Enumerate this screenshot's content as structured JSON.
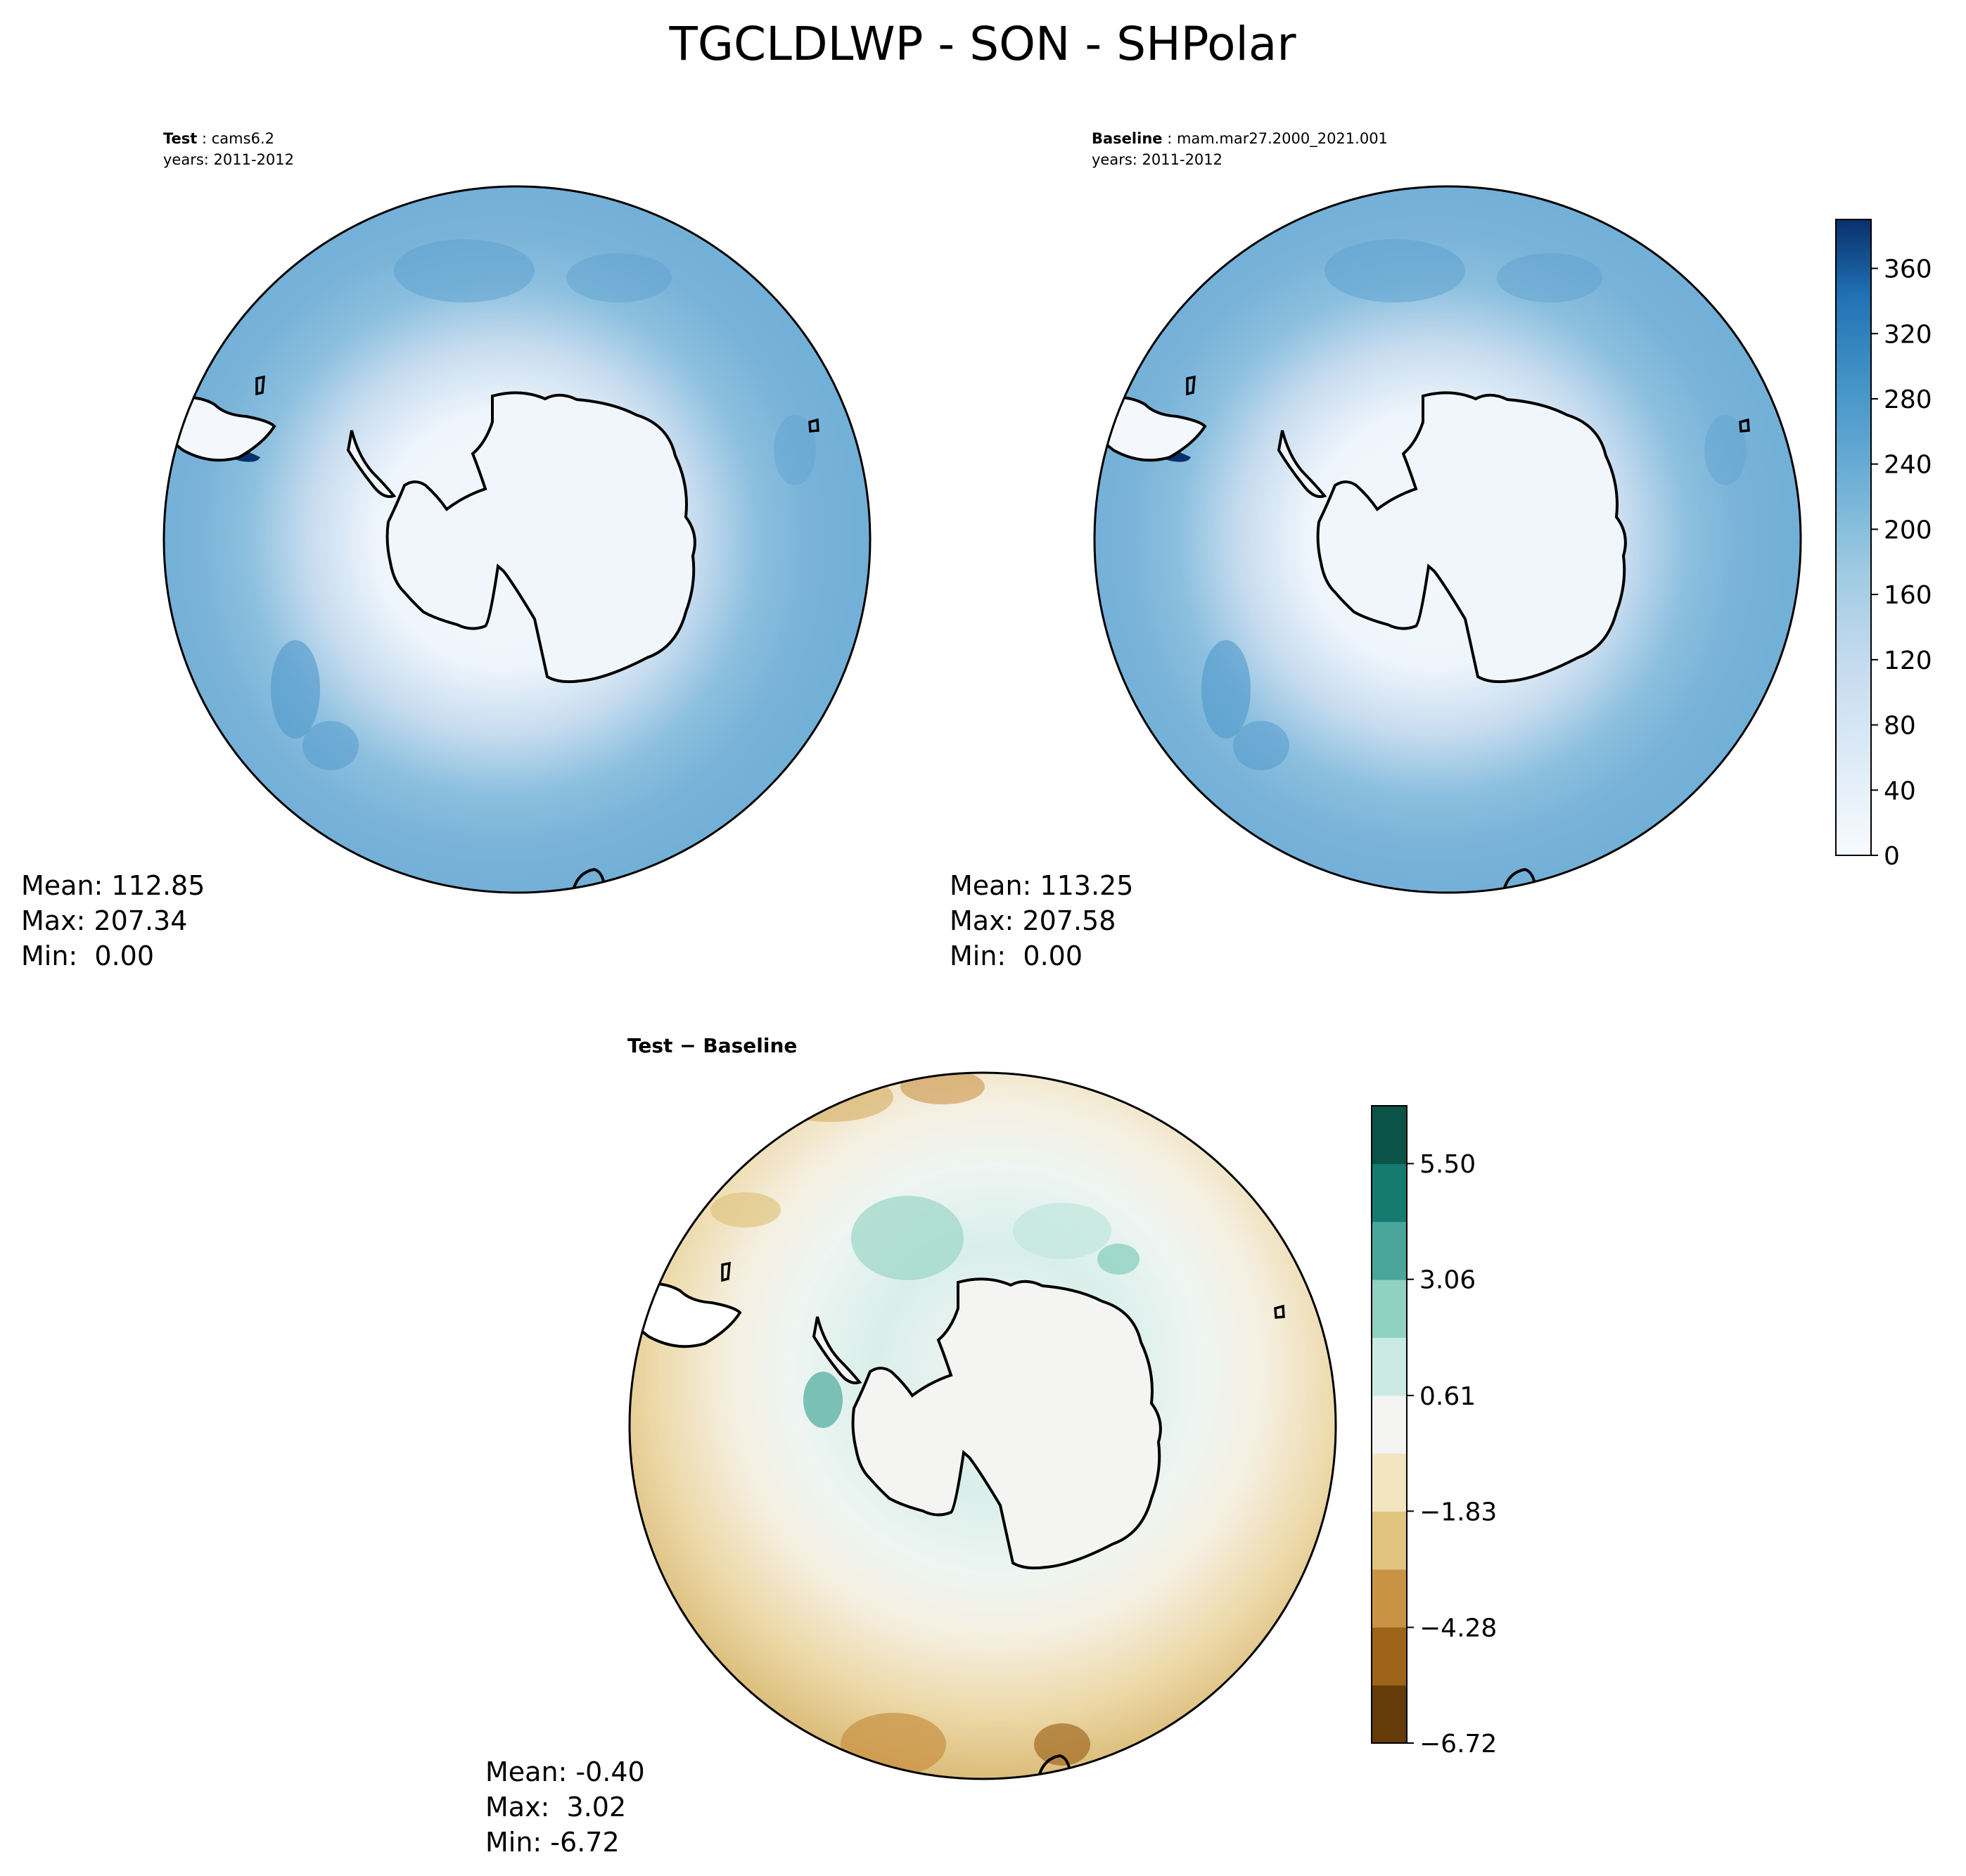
{
  "figure": {
    "title": "TGCLDLWP - SON - SHPolar"
  },
  "panels": {
    "test": {
      "label_bold": "Test",
      "label_sep": " : ",
      "label_rest": "cams6.2",
      "years": "years: 2011-2012",
      "stats": {
        "mean": "Mean: 112.85",
        "max": "Max: 207.34",
        "min": "Min:  0.00"
      }
    },
    "baseline": {
      "label_bold": "Baseline",
      "label_sep": " : ",
      "label_rest": "mam.mar27.2000_2021.001",
      "years": "years: 2011-2012",
      "stats": {
        "mean": "Mean: 113.25",
        "max": "Max: 207.58",
        "min": "Min:  0.00"
      }
    },
    "diff": {
      "label": "Test − Baseline",
      "stats": {
        "mean": "Mean: -0.40",
        "max": "Max:  3.02",
        "min": "Min: -6.72"
      }
    }
  },
  "colorbars": {
    "main": {
      "ticks": [
        "0",
        "40",
        "80",
        "120",
        "160",
        "200",
        "240",
        "280",
        "320",
        "360"
      ],
      "tick_values": [
        0,
        40,
        80,
        120,
        160,
        200,
        240,
        280,
        320,
        360
      ],
      "range": [
        0,
        390
      ],
      "colormap": "Blues"
    },
    "diff": {
      "ticks": [
        "−6.72",
        "−4.28",
        "−1.83",
        "0.61",
        "3.06",
        "5.50"
      ],
      "tick_values": [
        -6.72,
        -4.28,
        -1.83,
        0.61,
        3.06,
        5.5
      ],
      "range": [
        -6.72,
        6.72
      ],
      "colormap": "BrBG",
      "band_colors": [
        "#653b0a",
        "#9d6318",
        "#c99346",
        "#e0c480",
        "#f3e4c0",
        "#f4f4f3",
        "#cbeae4",
        "#8fd2c2",
        "#4aa59a",
        "#157a70",
        "#0a5346"
      ]
    }
  }
}
